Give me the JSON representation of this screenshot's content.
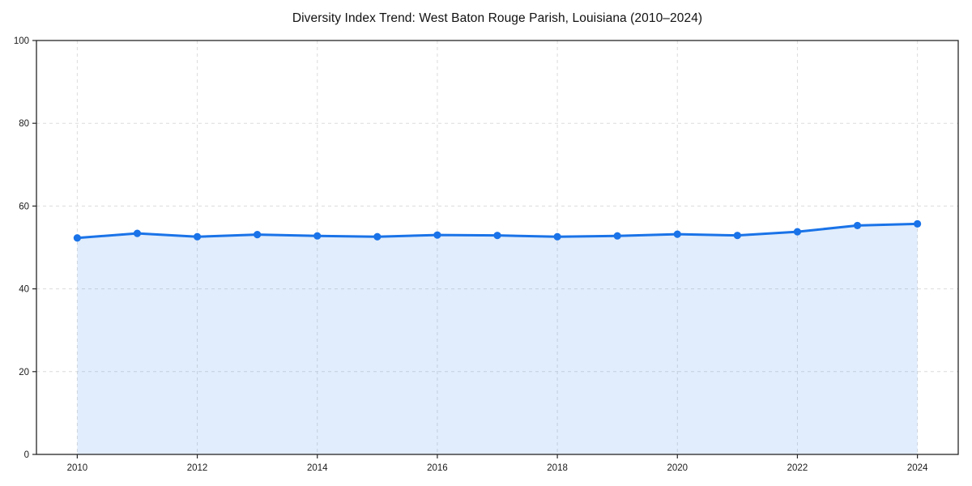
{
  "page": {
    "title": "Diversity Index Trend: West Baton Rouge Parish, Louisiana (2010–2024)"
  },
  "chart_data": {
    "type": "line",
    "title": "Diversity Index Trend: West Baton Rouge Parish, Louisiana (2010–2024)",
    "x": [
      2010,
      2011,
      2012,
      2013,
      2014,
      2015,
      2016,
      2017,
      2018,
      2019,
      2020,
      2021,
      2022,
      2023,
      2024
    ],
    "series": [
      {
        "name": "Diversity Index",
        "values": [
          52.3,
          53.4,
          52.6,
          53.1,
          52.8,
          52.6,
          53.0,
          52.9,
          52.6,
          52.8,
          53.2,
          52.9,
          53.8,
          55.3,
          55.7
        ]
      }
    ],
    "xlabel": "",
    "ylabel": "",
    "ylim": [
      0,
      100
    ],
    "yticks": [
      0,
      20,
      40,
      60,
      80,
      100
    ],
    "xticks": [
      2010,
      2012,
      2014,
      2016,
      2018,
      2020,
      2022,
      2024
    ],
    "grid": true,
    "grid_style": "dashed",
    "legend_position": "none",
    "marker": "circle",
    "area_fill": true,
    "colors": {
      "line": "#1a73e8",
      "marker": "#1a73e8",
      "fill": "rgba(26,115,232,0.13)",
      "grid": "#dcdcdc",
      "axis": "#262626",
      "tick_label": "#1a1a1a",
      "title": "#111111",
      "background": "#ffffff"
    }
  }
}
